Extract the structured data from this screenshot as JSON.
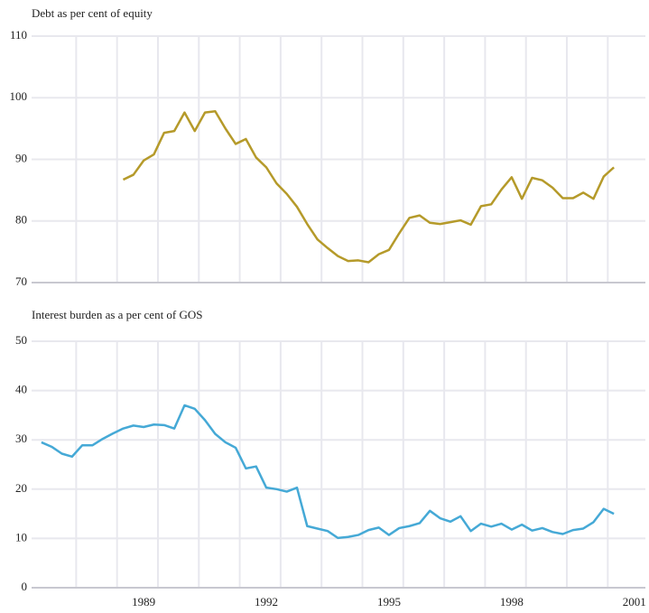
{
  "chart_data": [
    {
      "type": "line",
      "title": "Debt as per cent of equity",
      "x": [
        1988.5,
        1988.75,
        1989,
        1989.25,
        1989.5,
        1989.75,
        1990,
        1990.25,
        1990.5,
        1990.75,
        1991,
        1991.25,
        1991.5,
        1991.75,
        1992,
        1992.25,
        1992.5,
        1992.75,
        1993,
        1993.25,
        1993.5,
        1993.75,
        1994,
        1994.25,
        1994.5,
        1994.75,
        1995,
        1995.25,
        1995.5,
        1995.75,
        1996,
        1996.25,
        1996.5,
        1996.75,
        1997,
        1997.25,
        1997.5,
        1997.75,
        1998,
        1998.25,
        1998.5,
        1998.75,
        1999,
        1999.25,
        1999.5,
        1999.75,
        2000,
        2000.25,
        2000.5
      ],
      "series": [
        {
          "color": "#b59a2a",
          "values": [
            86.7,
            87.5,
            89.8,
            90.8,
            94.3,
            94.6,
            97.6,
            94.6,
            97.6,
            97.8,
            95,
            92.5,
            93.3,
            90.3,
            88.7,
            86.1,
            84.4,
            82.3,
            79.5,
            77,
            75.6,
            74.3,
            73.5,
            73.6,
            73.3,
            74.6,
            75.3,
            78,
            80.5,
            80.9,
            79.7,
            79.5,
            79.8,
            80.1,
            79.4,
            82.4,
            82.7,
            85.1,
            87.1,
            83.6,
            87,
            86.6,
            85.4,
            83.7,
            83.7,
            84.6,
            83.6,
            87.2,
            88.7
          ]
        }
      ],
      "xlim": [
        1986.26,
        2001.27
      ],
      "ylim": [
        70,
        110
      ],
      "yticks": [
        70,
        80,
        90,
        100,
        110
      ],
      "grid": true
    },
    {
      "type": "line",
      "title": "Interest burden as a per cent of GOS",
      "x": [
        1986.5,
        1986.75,
        1987,
        1987.25,
        1987.5,
        1987.75,
        1988,
        1988.25,
        1988.5,
        1988.75,
        1989,
        1989.25,
        1989.5,
        1989.75,
        1990,
        1990.25,
        1990.5,
        1990.75,
        1991,
        1991.25,
        1991.5,
        1991.75,
        1992,
        1992.25,
        1992.5,
        1992.75,
        1993,
        1993.25,
        1993.5,
        1993.75,
        1994,
        1994.25,
        1994.5,
        1994.75,
        1995,
        1995.25,
        1995.5,
        1995.75,
        1996,
        1996.25,
        1996.5,
        1996.75,
        1997,
        1997.25,
        1997.5,
        1997.75,
        1998,
        1998.25,
        1998.5,
        1998.75,
        1999,
        1999.25,
        1999.5,
        1999.75,
        2000,
        2000.25,
        2000.5
      ],
      "series": [
        {
          "color": "#45a9d6",
          "values": [
            29.5,
            28.6,
            27.2,
            26.6,
            28.9,
            28.9,
            30.2,
            31.3,
            32.3,
            32.9,
            32.6,
            33.1,
            33,
            32.3,
            37,
            36.3,
            34,
            31.2,
            29.5,
            28.4,
            24.2,
            24.6,
            20.3,
            20,
            19.5,
            20.3,
            12.5,
            12,
            11.5,
            10.1,
            10.3,
            10.7,
            11.7,
            12.2,
            10.7,
            12.1,
            12.5,
            13.1,
            15.6,
            14.1,
            13.4,
            14.5,
            11.5,
            13,
            12.4,
            13,
            11.8,
            12.8,
            11.6,
            12.1,
            11.3,
            10.9,
            11.7,
            12,
            13.3,
            16,
            15
          ]
        }
      ],
      "xlim": [
        1986.26,
        2001.27
      ],
      "ylim": [
        0,
        50
      ],
      "yticks": [
        0,
        10,
        20,
        30,
        40,
        50
      ],
      "xticks": [
        1989,
        1992,
        1995,
        1998,
        2001
      ],
      "xgrid": [
        1987.35,
        1988.35,
        1989.35,
        1990.35,
        1991.35,
        1992.35,
        1993.35,
        1994.35,
        1995.35,
        1996.35,
        1997.35,
        1998.35,
        1999.35,
        2000.35
      ],
      "grid": true
    }
  ]
}
